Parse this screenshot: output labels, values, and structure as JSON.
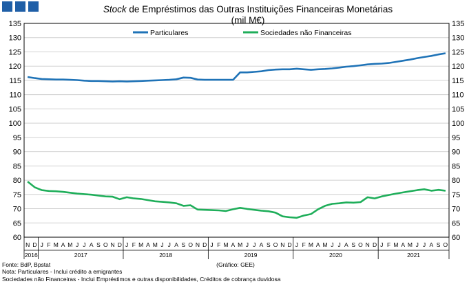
{
  "colors": {
    "brand_squares": "#1f5fa7",
    "particulares": "#1f73b7",
    "sociedades": "#1fae5a",
    "grid": "#d0d0d0"
  },
  "header": {
    "title_italic": "Stock",
    "title_rest": " de Empréstimos das Outras Instituições Financeiras Monetárias",
    "subtitle": "(mil M€)"
  },
  "footer": {
    "source": "Fonte: BdP, Bpstat",
    "note1": "Nota: Particulares - Inclui crédito a emigrantes",
    "note2": "Sociedades não Financeiras - Inclui Empréstimos e outras disponibilidades, Créditos de cobrança duvidosa",
    "credit": "(Gráfico: GEE)"
  },
  "chart_data": {
    "type": "line",
    "ylim": [
      60,
      135
    ],
    "y_ticks": [
      60,
      65,
      70,
      75,
      80,
      85,
      90,
      95,
      100,
      105,
      110,
      115,
      120,
      125,
      130,
      135
    ],
    "months": [
      "N",
      "D",
      "J",
      "F",
      "M",
      "A",
      "M",
      "J",
      "J",
      "A",
      "S",
      "O",
      "N",
      "D",
      "J",
      "F",
      "M",
      "A",
      "M",
      "J",
      "J",
      "A",
      "S",
      "O",
      "N",
      "D",
      "J",
      "F",
      "M",
      "A",
      "M",
      "J",
      "J",
      "A",
      "S",
      "O",
      "N",
      "D",
      "J",
      "F",
      "M",
      "A",
      "M",
      "J",
      "J",
      "A",
      "S",
      "O",
      "N",
      "D",
      "J",
      "F",
      "M",
      "A",
      "M",
      "J",
      "J",
      "A",
      "S",
      "O"
    ],
    "years": [
      {
        "label": "2016",
        "start": 0,
        "end": 1
      },
      {
        "label": "2017",
        "start": 2,
        "end": 13
      },
      {
        "label": "2018",
        "start": 14,
        "end": 25
      },
      {
        "label": "2019",
        "start": 26,
        "end": 37
      },
      {
        "label": "2020",
        "start": 38,
        "end": 49
      },
      {
        "label": "2021",
        "start": 50,
        "end": 59
      }
    ],
    "legend": [
      "Particulares",
      "Sociedades não Financeiras"
    ],
    "series": [
      {
        "name": "Particulares",
        "values": [
          116.2,
          115.8,
          115.5,
          115.4,
          115.3,
          115.3,
          115.2,
          115.1,
          114.9,
          114.8,
          114.8,
          114.7,
          114.6,
          114.7,
          114.6,
          114.7,
          114.8,
          114.9,
          115.0,
          115.1,
          115.2,
          115.4,
          116.0,
          115.9,
          115.3,
          115.2,
          115.2,
          115.2,
          115.2,
          115.2,
          117.8,
          117.8,
          118.0,
          118.2,
          118.6,
          118.8,
          118.9,
          118.9,
          119.1,
          118.9,
          118.7,
          118.9,
          119.0,
          119.2,
          119.5,
          119.8,
          120.0,
          120.3,
          120.6,
          120.8,
          120.9,
          121.1,
          121.5,
          121.9,
          122.3,
          122.8,
          123.2,
          123.6,
          124.1,
          124.5
        ]
      },
      {
        "name": "Sociedades não Financeiras",
        "values": [
          79.5,
          77.5,
          76.5,
          76.2,
          76.1,
          75.9,
          75.6,
          75.3,
          75.1,
          74.9,
          74.6,
          74.3,
          74.2,
          73.3,
          74.0,
          73.6,
          73.4,
          73.0,
          72.6,
          72.4,
          72.2,
          71.9,
          71.0,
          71.2,
          69.7,
          69.6,
          69.5,
          69.4,
          69.2,
          69.8,
          70.3,
          69.9,
          69.6,
          69.3,
          69.1,
          68.6,
          67.3,
          67.0,
          66.8,
          67.6,
          68.1,
          69.8,
          71.0,
          71.7,
          71.9,
          72.2,
          72.1,
          72.3,
          74.0,
          73.6,
          74.3,
          74.8,
          75.3,
          75.7,
          76.1,
          76.5,
          76.8,
          76.3,
          76.6,
          76.3
        ]
      }
    ]
  }
}
